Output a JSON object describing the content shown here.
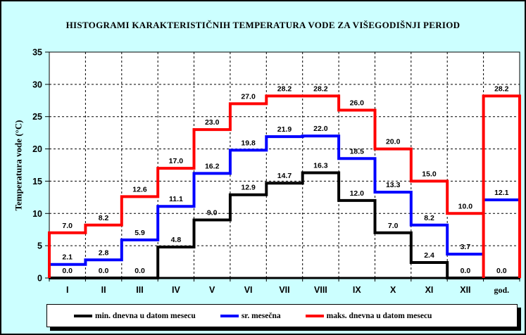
{
  "window": {
    "background_color": "#CCFFFF",
    "plot_background_color": "#FFFFFF"
  },
  "chart_data": {
    "type": "step-line",
    "title": "HISTOGRAMI KARAKTERISTIČNIH TEMPERATURA VODE ZA VIŠEGODIŠNJI PERIOD",
    "ylabel": "Temperatura vode (°C)",
    "xlabel": "",
    "ylim": [
      0,
      35
    ],
    "ytick_step": 5,
    "grid": true,
    "gridline_style": "dashed",
    "legend_position": "bottom",
    "categories": [
      "I",
      "II",
      "III",
      "IV",
      "V",
      "VI",
      "VII",
      "VIII",
      "IX",
      "X",
      "XI",
      "XII",
      "god."
    ],
    "series": [
      {
        "name": "min. dnevna u datom mesecu",
        "color": "#000000",
        "values": [
          0.0,
          0.0,
          0.0,
          4.8,
          9.0,
          12.9,
          14.7,
          16.3,
          12.0,
          7.0,
          2.4,
          0.0,
          0.0
        ]
      },
      {
        "name": "sr. mesečna",
        "color": "#0000FF",
        "values": [
          2.1,
          2.8,
          5.9,
          11.1,
          16.2,
          19.8,
          21.9,
          22.0,
          18.5,
          13.3,
          8.2,
          3.7,
          12.1
        ]
      },
      {
        "name": "maks. dnevna u datom mesecu",
        "color": "#FF0000",
        "values": [
          7.0,
          8.2,
          12.6,
          17.0,
          23.0,
          27.0,
          28.2,
          28.2,
          26.0,
          20.0,
          15.0,
          10.0,
          28.2
        ]
      }
    ]
  }
}
